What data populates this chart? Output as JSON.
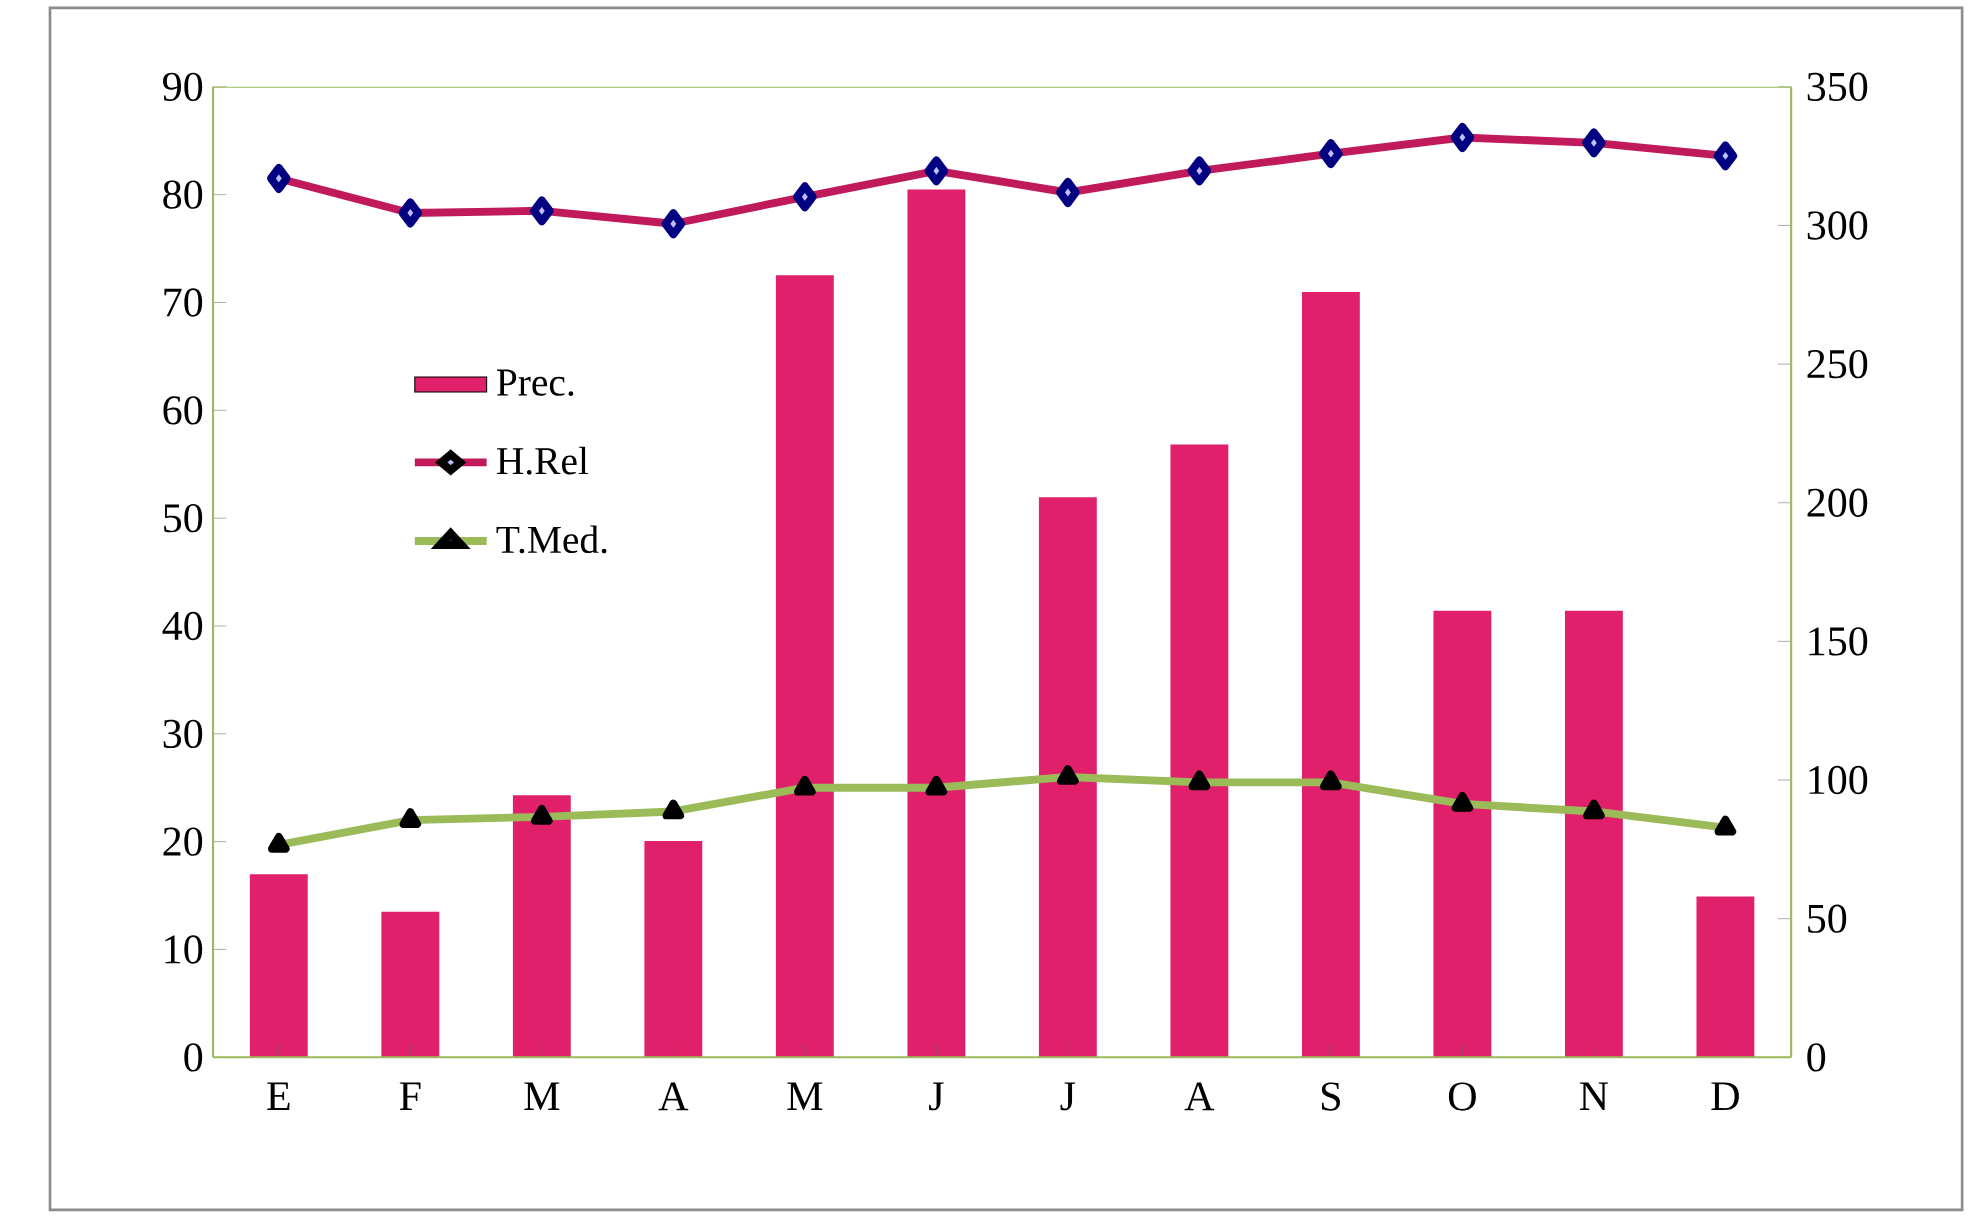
{
  "chart_data": {
    "type": "bar",
    "categories": [
      "E",
      "F",
      "M",
      "A",
      "M",
      "J",
      "J",
      "A",
      "S",
      "O",
      "N",
      "D"
    ],
    "series": [
      {
        "name": "Prec.",
        "axis": "y2",
        "color": "#e0206a",
        "values": [
          66,
          52.5,
          94.5,
          78,
          282,
          313,
          202,
          221,
          276,
          161,
          161,
          58
        ]
      },
      {
        "name": "H.Rel",
        "type": "line",
        "color": "#c01a5a",
        "marker": "diamond",
        "values": [
          81.5,
          78.3,
          78.5,
          77.3,
          79.8,
          82.2,
          80.2,
          82.2,
          83.8,
          85.3,
          84.8,
          83.6
        ]
      },
      {
        "name": "T.Med.",
        "type": "line",
        "color": "#9bbb59",
        "marker": "triangle",
        "values": [
          19.7,
          22,
          22.3,
          22.8,
          25,
          25,
          26,
          25.5,
          25.5,
          23.5,
          22.8,
          21.3
        ]
      }
    ],
    "ylim": [
      0,
      90
    ],
    "yticks": [
      0,
      10,
      20,
      30,
      40,
      50,
      60,
      70,
      80,
      90
    ],
    "y2lim": [
      0,
      350
    ],
    "y2ticks": [
      0,
      50,
      100,
      150,
      200,
      250,
      300,
      350
    ],
    "grid": false,
    "legend": "left"
  }
}
